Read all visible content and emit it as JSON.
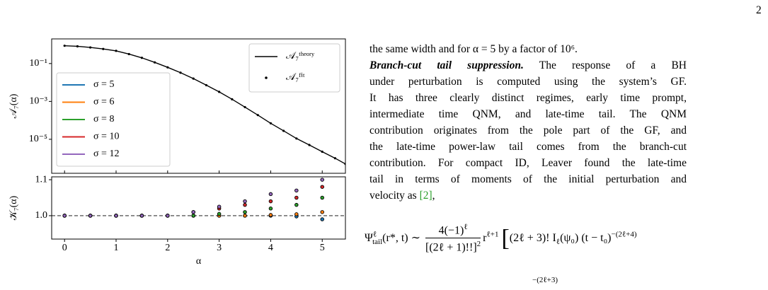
{
  "page_number": "2",
  "chart_data": [
    {
      "type": "line",
      "ylabel": "𝒜₇(α)",
      "log_y": true,
      "xlim": [
        -0.25,
        5.45
      ],
      "ylim": [
        1.6e-07,
        2
      ],
      "yticks": [
        {
          "value": 0.1,
          "label": "10⁻¹"
        },
        {
          "value": 0.001,
          "label": "10⁻³"
        },
        {
          "value": 1e-05,
          "label": "10⁻⁵"
        }
      ],
      "x": [
        0,
        0.25,
        0.5,
        0.75,
        1,
        1.25,
        1.5,
        1.75,
        2,
        2.25,
        2.5,
        2.75,
        3,
        3.25,
        3.5,
        3.75,
        4,
        4.25,
        4.5,
        4.75,
        5,
        5.25,
        5.45
      ],
      "legend": "upper right",
      "series": [
        {
          "name": "𝒜₇ᵗʰᵉᵒʳʸ",
          "color": "#000000",
          "style": "line",
          "values": [
            0.871,
            0.813,
            0.708,
            0.589,
            0.468,
            0.316,
            0.2,
            0.115,
            0.063,
            0.033,
            0.016,
            0.0072,
            0.0032,
            0.0013,
            0.0005,
            0.00019,
            7e-05,
            2.8e-05,
            1.1e-05,
            5e-06,
            2.2e-06,
            1e-06,
            5e-07
          ]
        },
        {
          "name": "𝒜₇ᶠⁱᵗ",
          "color": "#000000",
          "style": "dots",
          "values": [
            0.871,
            0.813,
            0.708,
            0.589,
            0.468,
            0.316,
            0.2,
            0.115,
            0.063,
            0.033,
            0.016,
            0.0072,
            0.0032,
            0.0013,
            0.0005,
            0.00019,
            7e-05,
            2.8e-05,
            1.1e-05,
            5e-06,
            2.2e-06,
            1e-06,
            5e-07
          ]
        }
      ]
    },
    {
      "type": "scatter",
      "ylabel": "𝒦₇(α)",
      "xlabel": "α",
      "xlim": [
        -0.25,
        5.45
      ],
      "ylim": [
        0.935,
        1.108
      ],
      "xticks": [
        0,
        1,
        2,
        3,
        4,
        5
      ],
      "yticks": [
        {
          "value": 1,
          "label": "1.0"
        },
        1.1
      ],
      "reference_line": 1,
      "legend": "left",
      "x": [
        0,
        0.5,
        1,
        1.5,
        2,
        2.5,
        3,
        3.5,
        4,
        4.5,
        5
      ],
      "series": [
        {
          "name": "σ = 5",
          "color": "#1f77b4",
          "values": [
            1,
            1,
            1,
            1,
            1,
            1,
            1,
            1,
            1,
            0.998,
            0.99
          ]
        },
        {
          "name": "σ = 6",
          "color": "#ff7f0e",
          "values": [
            1,
            1,
            1,
            1,
            1,
            1,
            1,
            1,
            1.002,
            1.004,
            1.01
          ]
        },
        {
          "name": "σ = 8",
          "color": "#2ca02c",
          "values": [
            1,
            1,
            1,
            1,
            1,
            1,
            1.005,
            1.01,
            1.02,
            1.03,
            1.05
          ]
        },
        {
          "name": "σ = 10",
          "color": "#d62728",
          "values": [
            1,
            1,
            1,
            1,
            1,
            1.01,
            1.02,
            1.03,
            1.04,
            1.05,
            1.08
          ]
        },
        {
          "name": "σ = 12",
          "color": "#9467bd",
          "values": [
            1,
            1,
            1,
            1,
            1,
            1.01,
            1.025,
            1.04,
            1.06,
            1.07,
            1.1
          ]
        }
      ]
    }
  ],
  "text": {
    "first_line": "the same width and for α = 5 by a factor of 10⁶.",
    "heading": "Branch-cut tail suppression.",
    "heading_rest": " The response of a BH",
    "lines": [
      "under perturbation is computed using the system’s GF.",
      "It has three clearly distinct regimes, early time prompt,",
      "intermediate time QNM, and late-time tail.  The QNM",
      "contribution originates from the pole part of the GF, and",
      "the late-time power-law tail comes from the branch-cut",
      "contribution. For compact ID, Leaver found the late-time",
      "tail in terms of moments of the initial perturbation and"
    ],
    "last_line": "velocity as ",
    "citation": "[2]",
    "last_end": ","
  },
  "equation": {
    "lhs": "Ψ",
    "lhs_sup": "ℓ",
    "lhs_sub": "tail",
    "lhs_args": "(r*, t) ∼",
    "numerator": "4(−1)",
    "numerator_sup": "ℓ",
    "denominator": "[(2ℓ + 1)!!]",
    "denominator_sup": "2",
    "factor": "r",
    "factor_sup": "ℓ+1",
    "bracket": "[",
    "term": "(2ℓ + 3)! I",
    "term_sub": "ℓ",
    "term_rest": "(ψ₀) (t − t₀)",
    "term_sup": "−(2ℓ+4)",
    "next_line_fragment": "−(2ℓ+3)"
  }
}
